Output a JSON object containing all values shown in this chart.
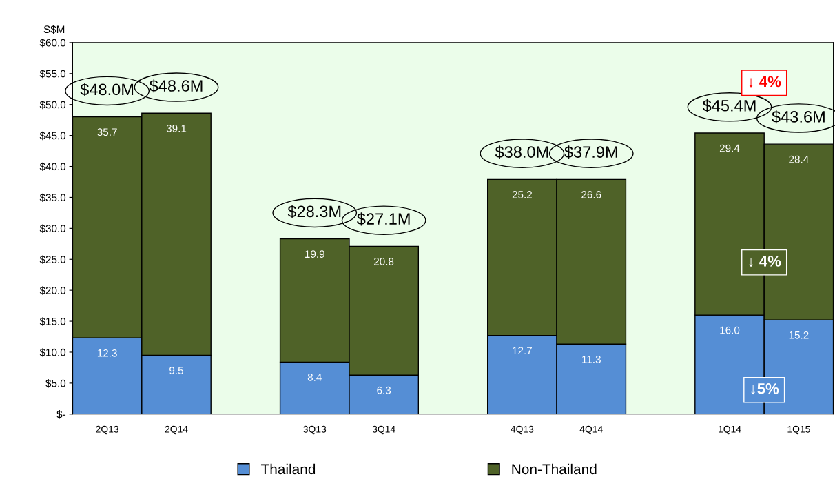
{
  "chart_data": {
    "type": "bar",
    "stacked": true,
    "ylabel": "S$M",
    "categories": [
      "2Q13",
      "2Q14",
      null,
      "3Q13",
      "3Q14",
      null,
      "4Q13",
      "4Q14",
      null,
      "1Q14",
      "1Q15"
    ],
    "series": [
      {
        "name": "Thailand",
        "color": "#558ed5",
        "values": [
          12.3,
          9.5,
          null,
          8.4,
          6.3,
          null,
          12.7,
          11.3,
          null,
          16.0,
          15.2
        ],
        "value_labels": [
          "12.3",
          "9.5",
          null,
          "8.4",
          "6.3",
          null,
          "12.7",
          "11.3",
          null,
          "16.0",
          "15.2"
        ]
      },
      {
        "name": "Non-Thailand",
        "color": "#4f6228",
        "values": [
          35.7,
          39.1,
          null,
          19.9,
          20.8,
          null,
          25.2,
          26.6,
          null,
          29.4,
          28.4
        ],
        "value_labels": [
          "35.7",
          "39.1",
          null,
          "19.9",
          "20.8",
          null,
          "25.2",
          "26.6",
          null,
          "29.4",
          "28.4"
        ]
      }
    ],
    "totals": [
      "$48.0M",
      "$48.6M",
      null,
      "$28.3M",
      "$27.1M",
      null,
      "$38.0M",
      "$37.9M",
      null,
      "$45.4M",
      "$43.6M"
    ],
    "ylim": [
      0,
      60
    ],
    "yticks": [
      {
        "value": 0,
        "label": "$-"
      },
      {
        "value": 5,
        "label": "$5.0"
      },
      {
        "value": 10,
        "label": "$10.0"
      },
      {
        "value": 15,
        "label": "$15.0"
      },
      {
        "value": 20,
        "label": "$20.0"
      },
      {
        "value": 25,
        "label": "$25.0"
      },
      {
        "value": 30,
        "label": "$30.0"
      },
      {
        "value": 35,
        "label": "$35.0"
      },
      {
        "value": 40,
        "label": "$40.0"
      },
      {
        "value": 45,
        "label": "$45.0"
      },
      {
        "value": 50,
        "label": "$50.0"
      },
      {
        "value": 55,
        "label": "$55.0"
      },
      {
        "value": 60,
        "label": "$60.0"
      }
    ],
    "annotations": [
      "↓ 4%",
      "↓ 4%",
      "↓5%"
    ],
    "grid": false,
    "legend": "bottom"
  }
}
